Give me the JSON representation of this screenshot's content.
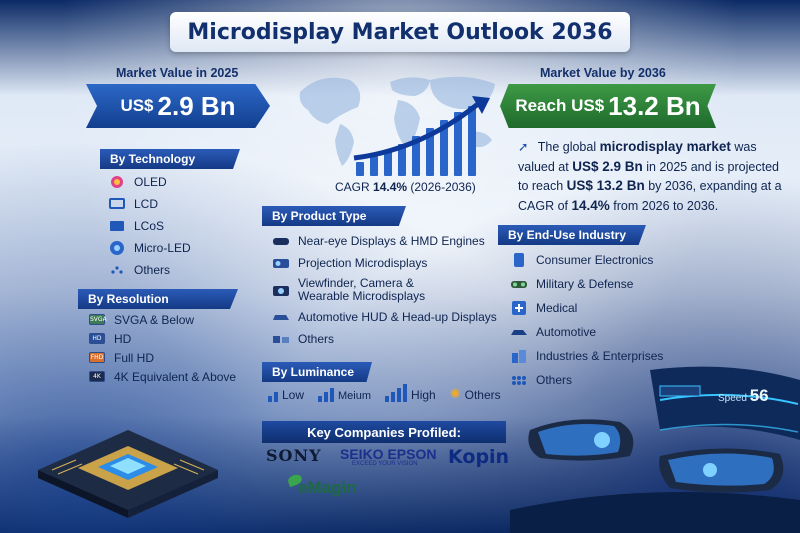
{
  "title": "Microdisplay Market Outlook 2036",
  "market_2025": {
    "label": "Market Value in 2025",
    "prefix": "US$",
    "value": "2.9 Bn"
  },
  "market_2036": {
    "label": "Market Value by 2036",
    "prefix": "Reach US$",
    "value": "13.2 Bn"
  },
  "cagr": {
    "label": "CAGR",
    "value": "14.4%",
    "period": "(2026-2036)"
  },
  "description": {
    "p1": "The global",
    "b1": "microdisplay market",
    "p2": "was valued at",
    "b2": "US$ 2.9 Bn",
    "p3": "in 2025 and is projected to reach",
    "b3": "US$ 13.2 Bn",
    "p4": "by 2036, expanding at a CAGR of",
    "b4": "14.4%",
    "p5": "from 2026 to 2036."
  },
  "by_technology": {
    "heading": "By Technology",
    "items": [
      "OLED",
      "LCD",
      "LCoS",
      "Micro-LED",
      "Others"
    ]
  },
  "by_resolution": {
    "heading": "By Resolution",
    "items": [
      "SVGA & Below",
      "HD",
      "Full HD",
      "4K Equivalent & Above"
    ],
    "chip_labels": [
      "SVGA",
      "HD",
      "FHD",
      "4K"
    ]
  },
  "by_product_type": {
    "heading": "By Product Type",
    "items": [
      "Near-eye Displays & HMD Engines",
      "Projection Microdisplays",
      "Viewfinder, Camera & Wearable Microdisplays",
      "Automotive HUD & Head-up Displays",
      "Others"
    ]
  },
  "by_luminance": {
    "heading": "By Luminance",
    "items": [
      "Low",
      "Meium",
      "High",
      "Others"
    ]
  },
  "by_end_use": {
    "heading": "By End-Use Industry",
    "items": [
      "Consumer Electronics",
      "Military & Defense",
      "Medical",
      "Automotive",
      "Industries & Enterprises",
      "Others"
    ]
  },
  "companies": {
    "heading": "Key Companies Profiled:",
    "logos": [
      "SONY",
      "SEIKO EPSON",
      "EXCEED YOUR VISION",
      "Kopin",
      "eMagin"
    ]
  },
  "dashboard": {
    "label": "Speed",
    "value": "56"
  },
  "colors": {
    "navy": "#12306e",
    "blue_ribbon": "#1f58b8",
    "green_ribbon": "#2e8a3a"
  }
}
